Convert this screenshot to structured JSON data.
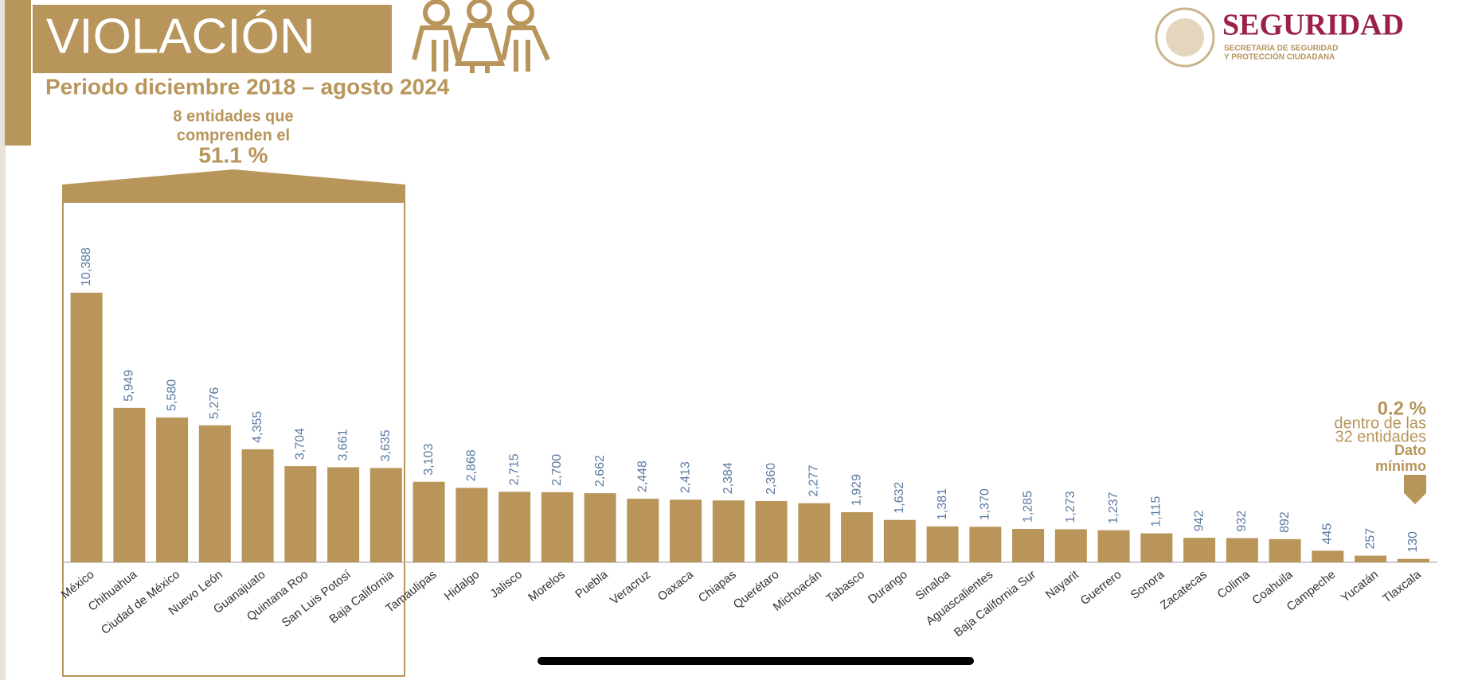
{
  "chart_data": {
    "type": "bar",
    "title": "VIOLACIÓN",
    "subtitle": "Periodo diciembre 2018 – agosto 2024",
    "logo": {
      "name": "SEGURIDAD",
      "line1": "SECRETARÍA DE SEGURIDAD",
      "line2": "Y PROTECCIÓN CIUDADANA"
    },
    "annotations": [
      "8 entidades que",
      "comprenden el",
      "51.1 %",
      "0.2 %",
      "dentro de las",
      "32 entidades",
      "Dato",
      "mínimo"
    ],
    "categories": [
      "México",
      "Chihuahua",
      "Ciudad de México",
      "Nuevo León",
      "Guanajuato",
      "Quintana Roo",
      "San Luis Potosí",
      "Baja California",
      "Tamaulipas",
      "Hidalgo",
      "Jalisco",
      "Morelos",
      "Puebla",
      "Veracruz",
      "Oaxaca",
      "Chiapas",
      "Querétaro",
      "Michoacán",
      "Tabasco",
      "Durango",
      "Sinaloa",
      "Aguascalientes",
      "Baja California Sur",
      "Nayarit",
      "Guerrero",
      "Sonora",
      "Zacatecas",
      "Colima",
      "Coahuila",
      "Campeche",
      "Yucatán",
      "Tlaxcala"
    ],
    "values": [
      10388,
      5949,
      5580,
      5276,
      4355,
      3704,
      3661,
      3635,
      3103,
      2868,
      2715,
      2700,
      2662,
      2448,
      2413,
      2384,
      2360,
      2277,
      1929,
      1632,
      1381,
      1370,
      1285,
      1273,
      1237,
      1115,
      942,
      932,
      892,
      445,
      257,
      130
    ],
    "value_labels": [
      "10,388",
      "5,949",
      "5,580",
      "5,276",
      "4,355",
      "3,704",
      "3,661",
      "3,635",
      "3,103",
      "2,868",
      "2,715",
      "2,700",
      "2,662",
      "2,448",
      "2,413",
      "2,384",
      "2,360",
      "2,277",
      "1,929",
      "1,632",
      "1,381",
      "1,370",
      "1,285",
      "1,273",
      "1,237",
      "1,115",
      "942",
      "932",
      "892",
      "445",
      "257",
      "130"
    ],
    "color": "#b9955a",
    "label_color": "#5b7aa0"
  }
}
